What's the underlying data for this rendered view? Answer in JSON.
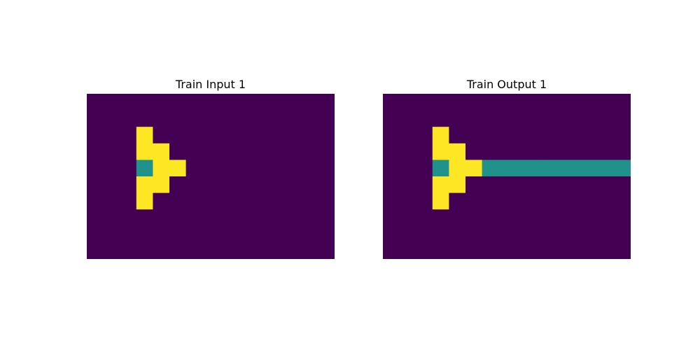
{
  "palette": {
    "0": "#440154",
    "4": "#fde725",
    "2": "#21918c"
  },
  "panels": [
    {
      "title": "Train Input 1",
      "grid": [
        [
          0,
          0,
          0,
          0,
          0,
          0,
          0,
          0,
          0,
          0,
          0,
          0,
          0,
          0,
          0
        ],
        [
          0,
          0,
          0,
          0,
          0,
          0,
          0,
          0,
          0,
          0,
          0,
          0,
          0,
          0,
          0
        ],
        [
          0,
          0,
          0,
          4,
          0,
          0,
          0,
          0,
          0,
          0,
          0,
          0,
          0,
          0,
          0
        ],
        [
          0,
          0,
          0,
          4,
          4,
          0,
          0,
          0,
          0,
          0,
          0,
          0,
          0,
          0,
          0
        ],
        [
          0,
          0,
          0,
          2,
          4,
          4,
          0,
          0,
          0,
          0,
          0,
          0,
          0,
          0,
          0
        ],
        [
          0,
          0,
          0,
          4,
          4,
          0,
          0,
          0,
          0,
          0,
          0,
          0,
          0,
          0,
          0
        ],
        [
          0,
          0,
          0,
          4,
          0,
          0,
          0,
          0,
          0,
          0,
          0,
          0,
          0,
          0,
          0
        ],
        [
          0,
          0,
          0,
          0,
          0,
          0,
          0,
          0,
          0,
          0,
          0,
          0,
          0,
          0,
          0
        ],
        [
          0,
          0,
          0,
          0,
          0,
          0,
          0,
          0,
          0,
          0,
          0,
          0,
          0,
          0,
          0
        ],
        [
          0,
          0,
          0,
          0,
          0,
          0,
          0,
          0,
          0,
          0,
          0,
          0,
          0,
          0,
          0
        ]
      ]
    },
    {
      "title": "Train Output 1",
      "grid": [
        [
          0,
          0,
          0,
          0,
          0,
          0,
          0,
          0,
          0,
          0,
          0,
          0,
          0,
          0,
          0
        ],
        [
          0,
          0,
          0,
          0,
          0,
          0,
          0,
          0,
          0,
          0,
          0,
          0,
          0,
          0,
          0
        ],
        [
          0,
          0,
          0,
          4,
          0,
          0,
          0,
          0,
          0,
          0,
          0,
          0,
          0,
          0,
          0
        ],
        [
          0,
          0,
          0,
          4,
          4,
          0,
          0,
          0,
          0,
          0,
          0,
          0,
          0,
          0,
          0
        ],
        [
          0,
          0,
          0,
          2,
          4,
          4,
          2,
          2,
          2,
          2,
          2,
          2,
          2,
          2,
          2
        ],
        [
          0,
          0,
          0,
          4,
          4,
          0,
          0,
          0,
          0,
          0,
          0,
          0,
          0,
          0,
          0
        ],
        [
          0,
          0,
          0,
          4,
          0,
          0,
          0,
          0,
          0,
          0,
          0,
          0,
          0,
          0,
          0
        ],
        [
          0,
          0,
          0,
          0,
          0,
          0,
          0,
          0,
          0,
          0,
          0,
          0,
          0,
          0,
          0
        ],
        [
          0,
          0,
          0,
          0,
          0,
          0,
          0,
          0,
          0,
          0,
          0,
          0,
          0,
          0,
          0
        ],
        [
          0,
          0,
          0,
          0,
          0,
          0,
          0,
          0,
          0,
          0,
          0,
          0,
          0,
          0,
          0
        ]
      ]
    }
  ]
}
